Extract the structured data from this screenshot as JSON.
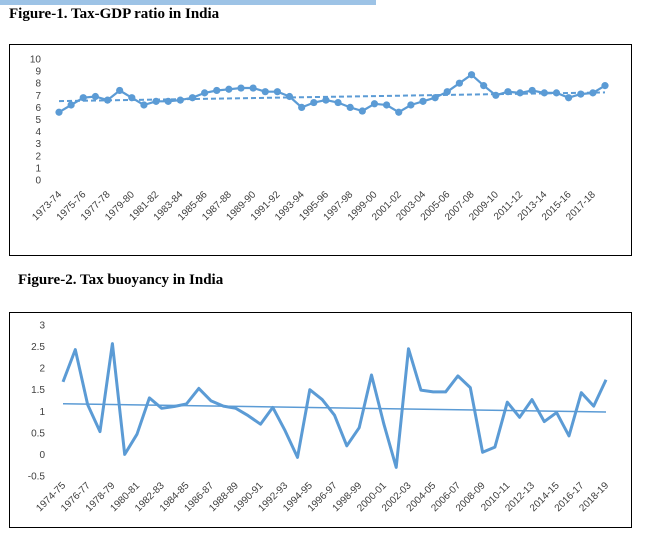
{
  "figures": [
    {
      "title": "Figure-1. Tax-GDP ratio in India"
    },
    {
      "title": "Figure-2. Tax buoyancy in India"
    }
  ],
  "colors": {
    "series": "#5b9bd5",
    "band": "#9dc3e6",
    "tick_text": "#404040"
  },
  "chart_data": [
    {
      "type": "line",
      "title": "Figure-1. Tax-GDP ratio in India",
      "markers": true,
      "trendline": "linear",
      "trendline_style": "dashed",
      "ylim": [
        0,
        10
      ],
      "yticks": [
        0,
        1,
        2,
        3,
        4,
        5,
        6,
        7,
        8,
        9,
        10
      ],
      "grid": false,
      "categories": [
        "1973-74",
        "1974-75",
        "1975-76",
        "1976-77",
        "1977-78",
        "1978-79",
        "1979-80",
        "1980-81",
        "1981-82",
        "1982-83",
        "1983-84",
        "1984-85",
        "1985-86",
        "1986-87",
        "1987-88",
        "1988-89",
        "1989-90",
        "1990-91",
        "1991-92",
        "1992-93",
        "1993-94",
        "1994-95",
        "1995-96",
        "1996-97",
        "1997-98",
        "1998-99",
        "1999-00",
        "2000-01",
        "2001-02",
        "2002-03",
        "2003-04",
        "2004-05",
        "2005-06",
        "2006-07",
        "2007-08",
        "2008-09",
        "2009-10",
        "2010-11",
        "2011-12",
        "2012-13",
        "2013-14",
        "2014-15",
        "2015-16",
        "2016-17",
        "2017-18",
        "2018-19"
      ],
      "tick_labels": [
        "1973-74",
        "1975-76",
        "1977-78",
        "1979-80",
        "1981-82",
        "1983-84",
        "1985-86",
        "1987-88",
        "1989-90",
        "1991-92",
        "1993-94",
        "1995-96",
        "1997-98",
        "1999-00",
        "2001-02",
        "2003-04",
        "2005-06",
        "2007-08",
        "2009-10",
        "2011-12",
        "2013-14",
        "2015-16",
        "2017-18"
      ],
      "values": [
        5.6,
        6.2,
        6.8,
        6.9,
        6.6,
        7.4,
        6.8,
        6.2,
        6.5,
        6.5,
        6.6,
        6.8,
        7.2,
        7.4,
        7.5,
        7.6,
        7.6,
        7.3,
        7.3,
        6.9,
        6.0,
        6.4,
        6.6,
        6.4,
        6.0,
        5.7,
        6.3,
        6.2,
        5.6,
        6.2,
        6.5,
        6.8,
        7.3,
        8.0,
        8.7,
        7.8,
        7.0,
        7.3,
        7.2,
        7.4,
        7.2,
        7.2,
        6.8,
        7.1,
        7.2,
        7.8
      ]
    },
    {
      "type": "line",
      "title": "Figure-2. Tax buoyancy in India",
      "markers": false,
      "trendline": "linear",
      "trendline_style": "solid",
      "ylim": [
        -0.5,
        3
      ],
      "yticks": [
        -0.5,
        0,
        0.5,
        1,
        1.5,
        2,
        2.5,
        3
      ],
      "grid": false,
      "categories": [
        "1974-75",
        "1975-76",
        "1976-77",
        "1977-78",
        "1978-79",
        "1979-80",
        "1980-81",
        "1981-82",
        "1982-83",
        "1983-84",
        "1984-85",
        "1985-86",
        "1986-87",
        "1987-88",
        "1988-89",
        "1989-90",
        "1990-91",
        "1991-92",
        "1992-93",
        "1993-94",
        "1994-95",
        "1995-96",
        "1996-97",
        "1997-98",
        "1998-99",
        "1999-00",
        "2000-01",
        "2001-02",
        "2002-03",
        "2003-04",
        "2004-05",
        "2005-06",
        "2006-07",
        "2007-08",
        "2008-09",
        "2009-10",
        "2010-11",
        "2011-12",
        "2012-13",
        "2013-14",
        "2014-15",
        "2015-16",
        "2016-17",
        "2017-18",
        "2018-19"
      ],
      "tick_labels": [
        "1974-75",
        "1976-77",
        "1978-79",
        "1980-81",
        "1982-83",
        "1984-85",
        "1986-87",
        "1988-89",
        "1990-91",
        "1992-93",
        "1994-95",
        "1996-97",
        "1998-99",
        "2000-01",
        "2002-03",
        "2004-05",
        "2006-07",
        "2008-09",
        "2010-11",
        "2012-13",
        "2014-15",
        "2016-17",
        "2018-19"
      ],
      "values": [
        1.68,
        2.43,
        1.15,
        0.53,
        2.57,
        0.0,
        0.47,
        1.31,
        1.07,
        1.11,
        1.17,
        1.53,
        1.24,
        1.12,
        1.07,
        0.9,
        0.7,
        1.09,
        0.55,
        -0.07,
        1.5,
        1.27,
        0.91,
        0.2,
        0.62,
        1.84,
        0.7,
        -0.3,
        2.45,
        1.49,
        1.45,
        1.45,
        1.82,
        1.55,
        0.05,
        0.17,
        1.21,
        0.86,
        1.27,
        0.76,
        0.97,
        0.43,
        1.43,
        1.12,
        1.73
      ]
    }
  ]
}
